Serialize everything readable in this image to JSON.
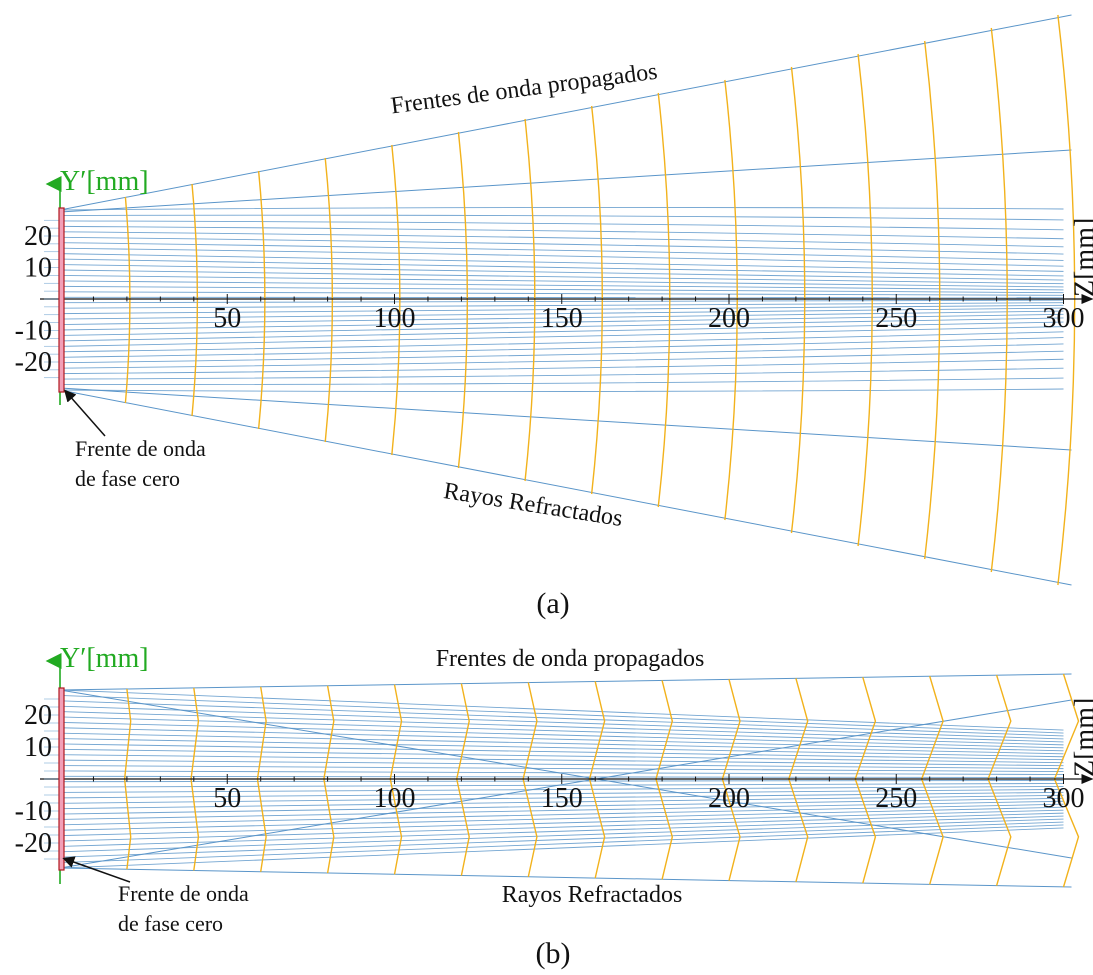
{
  "panels": [
    {
      "id": "a",
      "label": "(a)",
      "y_axis_label": "Y′[mm]",
      "z_axis_label": "Z[mm]",
      "z_ticks": [
        "50",
        "100",
        "150",
        "200",
        "250",
        "300"
      ],
      "y_ticks": [
        "20",
        "10",
        "-10",
        "-20"
      ],
      "title_top": "Frentes de onda propagados",
      "title_bottom": "Rayos Refractados",
      "annotation": [
        "Frente de onda",
        "de fase cero"
      ]
    },
    {
      "id": "b",
      "label": "(b)",
      "y_axis_label": "Y′[mm]",
      "z_axis_label": "Z[mm]",
      "z_ticks": [
        "50",
        "100",
        "150",
        "200",
        "250",
        "300"
      ],
      "y_ticks": [
        "20",
        "10",
        "-10",
        "-20"
      ],
      "title_top": "Frentes de onda propagados",
      "title_bottom": "Rayos Refractados",
      "annotation": [
        "Frente de onda",
        "de fase cero"
      ]
    }
  ],
  "colors": {
    "ray": "#5a95c9",
    "wavefront": "#f2b21c",
    "axis_label": "#22aa22",
    "source_fill": "#f2a0b8",
    "source_stroke": "#b0181f"
  },
  "icons": [
    "axis-arrow-icon",
    "annotation-arrow-icon"
  ]
}
